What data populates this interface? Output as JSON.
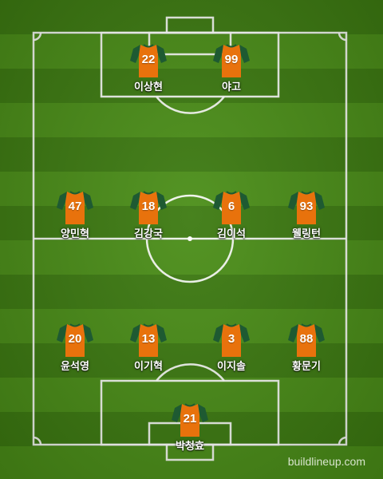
{
  "colors": {
    "jersey_body": "#e8720c",
    "jersey_sleeve": "#1e5a32",
    "lines": "#ffffff"
  },
  "watermark": "buildlineup.com",
  "players": [
    {
      "number": "22",
      "name": "이상현"
    },
    {
      "number": "99",
      "name": "야고"
    },
    {
      "number": "47",
      "name": "양민혁"
    },
    {
      "number": "18",
      "name": "김강국"
    },
    {
      "number": "6",
      "name": "김이석"
    },
    {
      "number": "93",
      "name": "웰링턴"
    },
    {
      "number": "20",
      "name": "윤석영"
    },
    {
      "number": "13",
      "name": "이기혁"
    },
    {
      "number": "3",
      "name": "이지솔"
    },
    {
      "number": "88",
      "name": "황문기"
    },
    {
      "number": "21",
      "name": "박청효"
    }
  ]
}
